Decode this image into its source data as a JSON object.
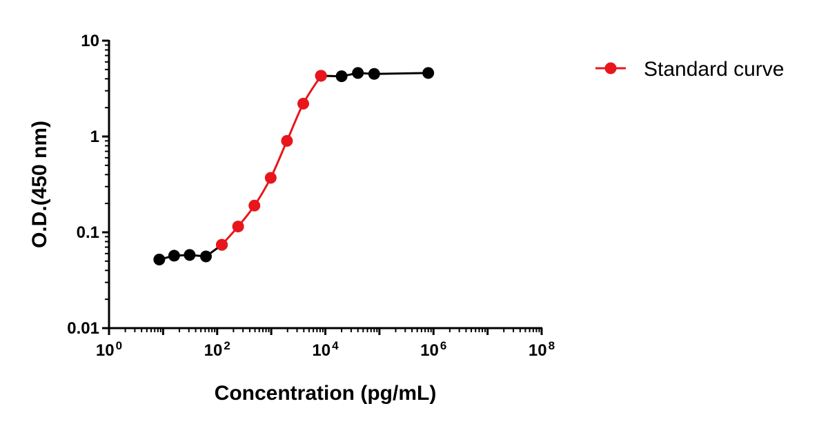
{
  "chart_data": {
    "type": "line",
    "title": "",
    "xlabel": "Concentration (pg/mL)",
    "ylabel": "O.D.(450 nm)",
    "x_scale": "log",
    "y_scale": "log",
    "xlim": [
      1,
      100000000
    ],
    "ylim": [
      0.01,
      10
    ],
    "x_ticks": [
      {
        "value": 1,
        "base": "10",
        "exp": "0"
      },
      {
        "value": 100,
        "base": "10",
        "exp": "2"
      },
      {
        "value": 10000,
        "base": "10",
        "exp": "4"
      },
      {
        "value": 1000000,
        "base": "10",
        "exp": "6"
      },
      {
        "value": 100000000,
        "base": "10",
        "exp": "8"
      }
    ],
    "y_ticks": [
      {
        "value": 0.01,
        "label": "0.01"
      },
      {
        "value": 0.1,
        "label": "0.1"
      },
      {
        "value": 1,
        "label": "1"
      },
      {
        "value": 10,
        "label": "10"
      }
    ],
    "grid": false,
    "legend_position": "top-right",
    "series": [
      {
        "color": "#000000",
        "segments": [
          {
            "x": [
              8.5,
              16,
              31,
              62,
              122
            ],
            "y": [
              0.052,
              0.057,
              0.058,
              0.056,
              0.074
            ]
          },
          {
            "x": [
              8300,
              20000,
              40000,
              80000,
              800000
            ],
            "y": [
              4.3,
              4.25,
              4.6,
              4.5,
              4.6
            ]
          }
        ]
      },
      {
        "name": "Standard curve",
        "color": "#e8161b",
        "x": [
          122,
          244,
          488,
          977,
          1953,
          3906,
          8300
        ],
        "y": [
          0.074,
          0.115,
          0.19,
          0.37,
          0.9,
          2.2,
          4.3
        ]
      }
    ]
  }
}
